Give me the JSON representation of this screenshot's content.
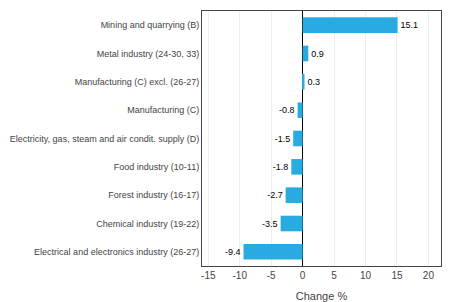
{
  "chart_data": {
    "type": "bar",
    "orientation": "horizontal",
    "categories": [
      "Electrical and electronics industry (26-27)",
      "Chemical industry (19-22)",
      "Forest industry (16-17)",
      "Food industry (10-11)",
      "Electricity, gas, steam and air condit. supply (D)",
      "Manufacturing (C)",
      "Manufacturing (C) excl. (26-27)",
      "Metal industry (24-30, 33)",
      "Mining and quarrying (B)"
    ],
    "values": [
      -9.4,
      -3.5,
      -2.7,
      -1.8,
      -1.5,
      -0.8,
      0.3,
      0.9,
      15.1
    ],
    "color": "#29abe2",
    "xlabel": "Change %",
    "xlim": [
      -16,
      22
    ],
    "xticks": [
      -15,
      -10,
      -5,
      0,
      5,
      10,
      15,
      20
    ],
    "grid": true,
    "data_labels": true
  }
}
